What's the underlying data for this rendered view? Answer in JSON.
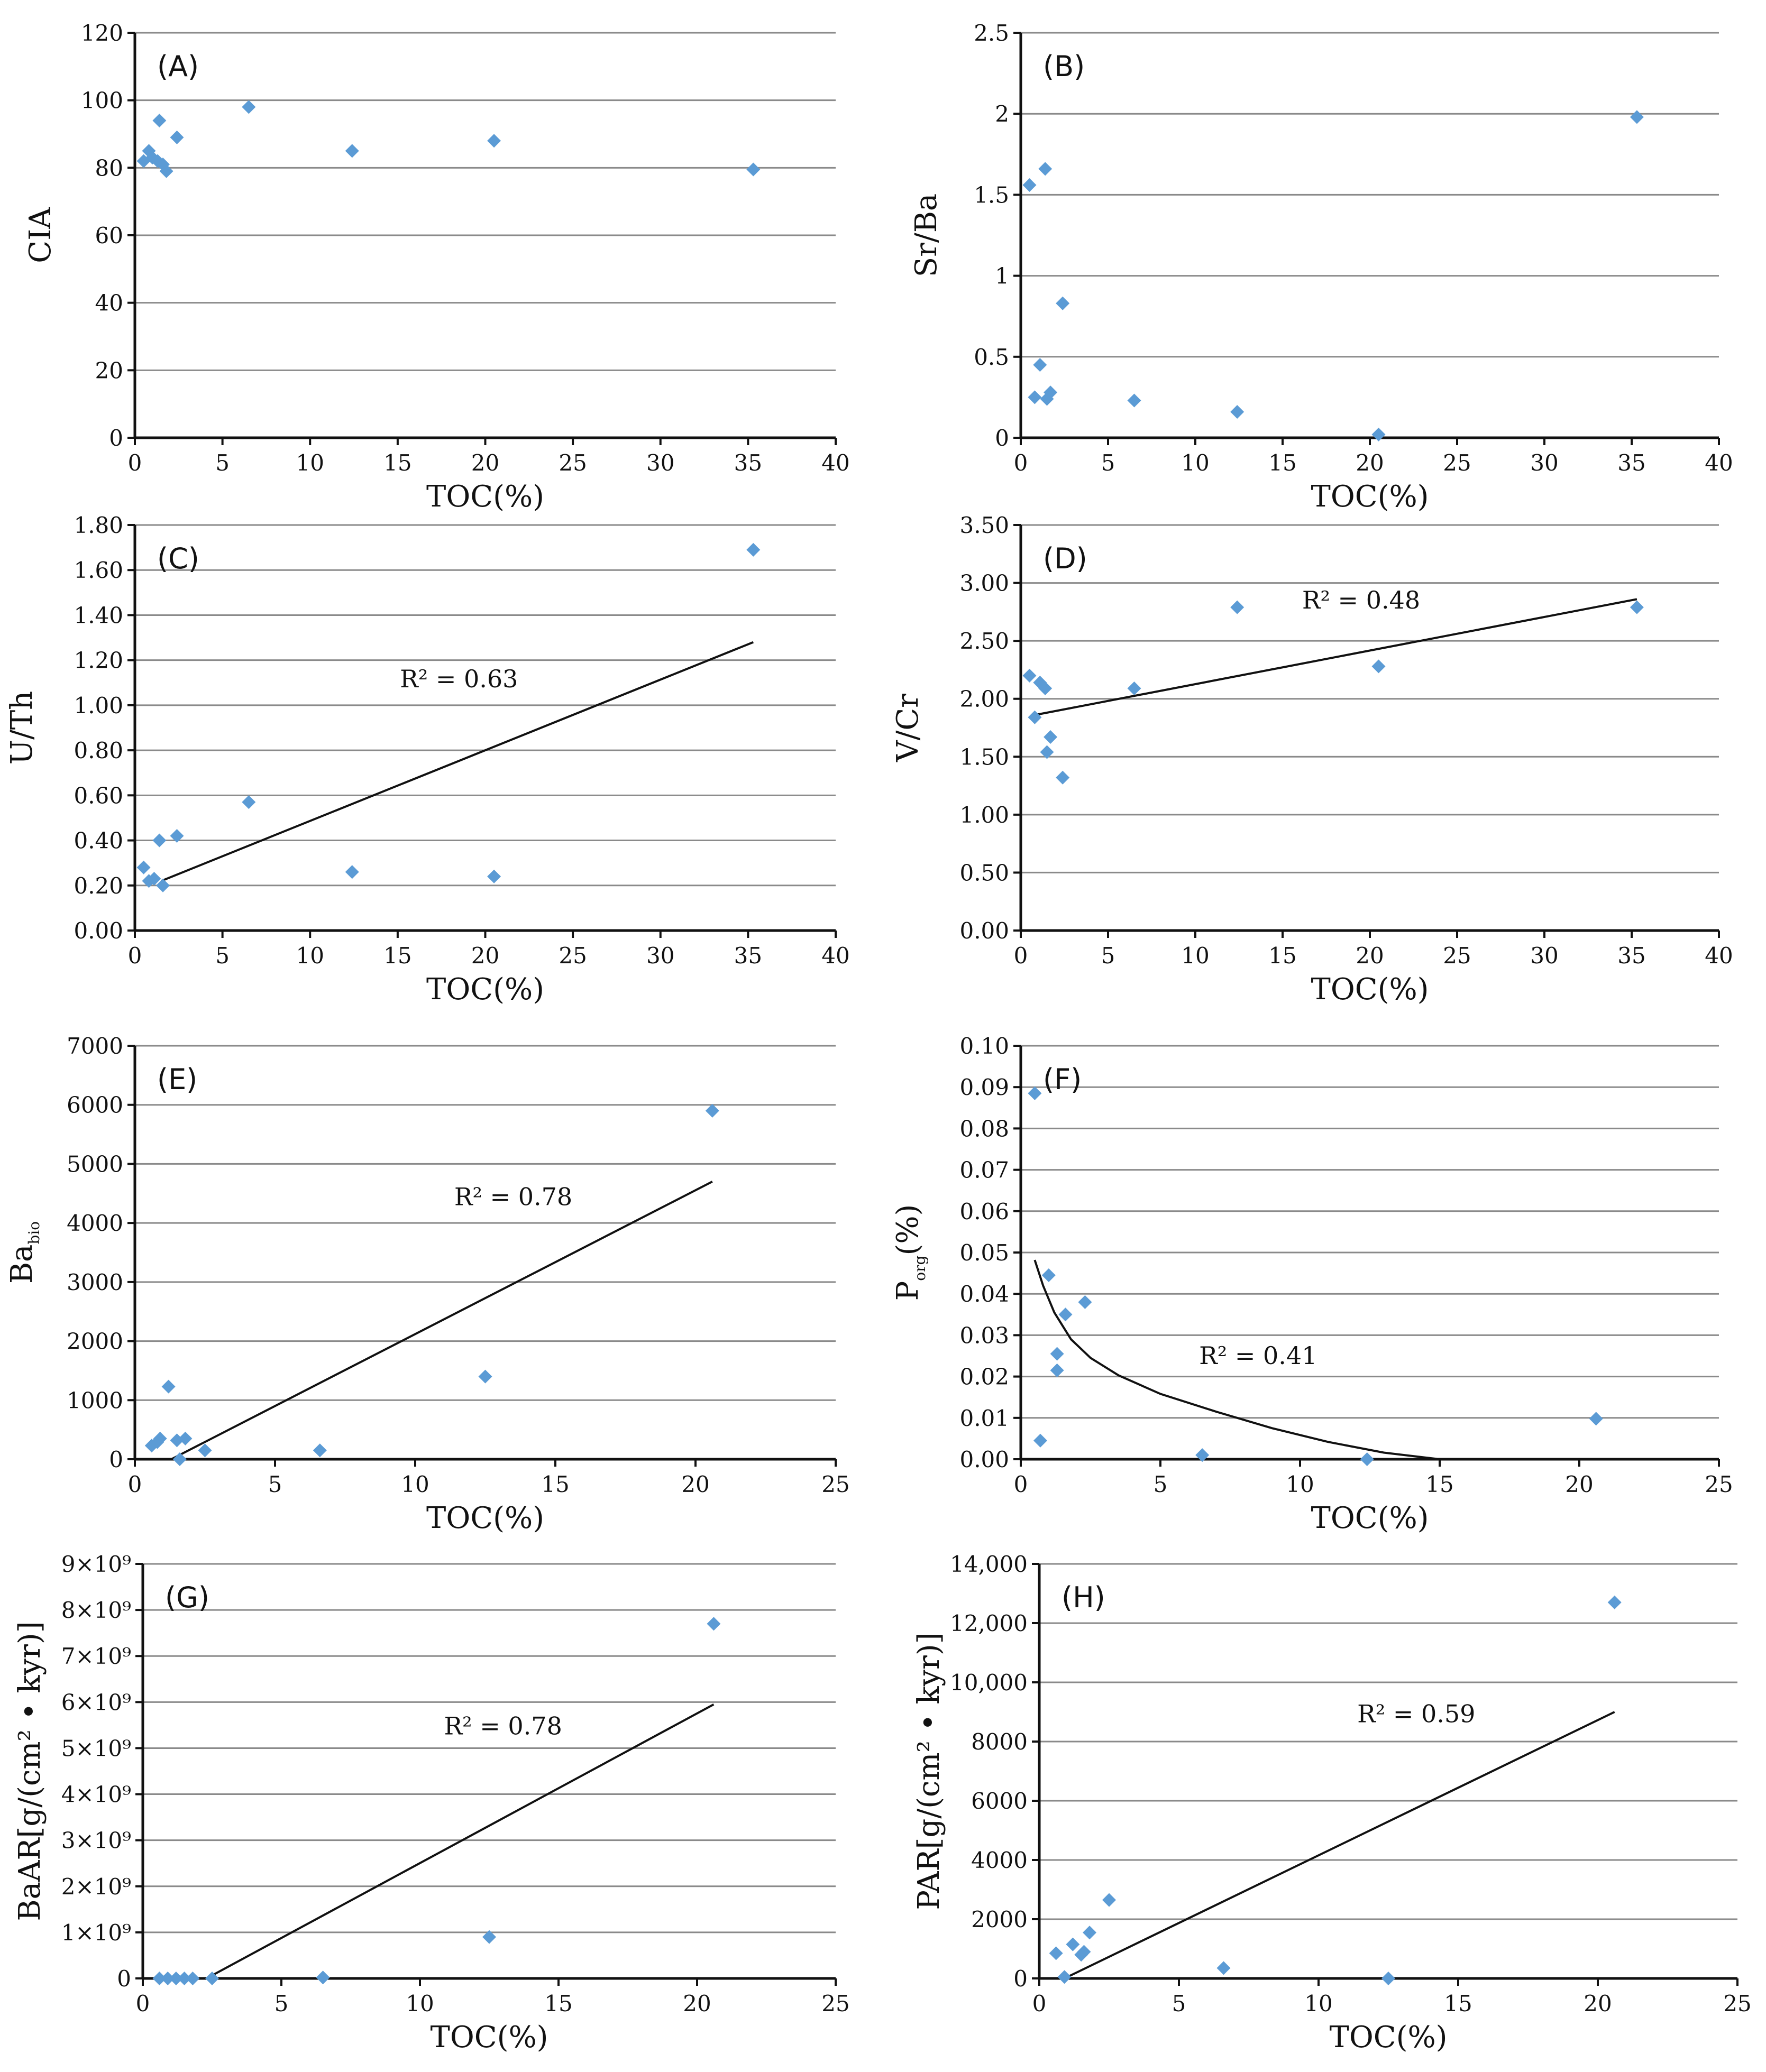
{
  "chart_data": [
    {
      "type": "scatter",
      "panel_label": "(A)",
      "title": "",
      "xlabel": "TOC(%)",
      "ylabel": "CIA",
      "xlim": [
        0,
        40
      ],
      "ylim": [
        0,
        120
      ],
      "xticks": [
        "0",
        "5",
        "10",
        "15",
        "20",
        "25",
        "30",
        "35",
        "40"
      ],
      "yticks": [
        "0",
        "20",
        "40",
        "60",
        "80",
        "100",
        "120"
      ],
      "grid": true,
      "legend": "none",
      "series": [
        {
          "name": "samples",
          "x": [
            0.5,
            0.8,
            1.0,
            1.3,
            1.4,
            1.6,
            1.8,
            2.4,
            6.5,
            12.4,
            20.5,
            35.3
          ],
          "y": [
            82,
            85,
            83,
            82,
            94,
            81,
            79,
            89,
            98,
            85,
            88,
            79.5
          ]
        }
      ],
      "trendline": null
    },
    {
      "type": "scatter",
      "panel_label": "(B)",
      "title": "",
      "xlabel": "TOC(%)",
      "ylabel": "Sr/Ba",
      "xlim": [
        0,
        40
      ],
      "ylim": [
        0,
        2.5
      ],
      "xticks": [
        "0",
        "5",
        "10",
        "15",
        "20",
        "25",
        "30",
        "35",
        "40"
      ],
      "yticks": [
        "0",
        "0.5",
        "1",
        "1.5",
        "2",
        "2.5"
      ],
      "grid": true,
      "legend": "none",
      "series": [
        {
          "name": "samples",
          "x": [
            0.5,
            0.8,
            1.1,
            1.4,
            1.5,
            1.7,
            2.4,
            6.5,
            12.4,
            20.5,
            35.3
          ],
          "y": [
            1.56,
            0.25,
            0.45,
            1.66,
            0.24,
            0.28,
            0.83,
            0.23,
            0.16,
            0.02,
            1.98
          ]
        }
      ],
      "trendline": null
    },
    {
      "type": "scatter",
      "panel_label": "(C)",
      "title": "",
      "xlabel": "TOC(%)",
      "ylabel": "U/Th",
      "xlim": [
        0,
        40
      ],
      "ylim": [
        0,
        1.8
      ],
      "xticks": [
        "0",
        "5",
        "10",
        "15",
        "20",
        "25",
        "30",
        "35",
        "40"
      ],
      "yticks": [
        "0.00",
        "0.20",
        "0.40",
        "0.60",
        "0.80",
        "1.00",
        "1.20",
        "1.40",
        "1.60",
        "1.80"
      ],
      "grid": true,
      "legend": "none",
      "series": [
        {
          "name": "samples",
          "x": [
            0.5,
            0.8,
            1.1,
            1.4,
            1.6,
            2.4,
            6.5,
            12.4,
            20.5,
            35.3
          ],
          "y": [
            0.28,
            0.22,
            0.23,
            0.4,
            0.2,
            0.42,
            0.57,
            0.26,
            0.24,
            1.69
          ]
        }
      ],
      "trendline": {
        "kind": "linear",
        "x": [
          1.5,
          35.3
        ],
        "y": [
          0.22,
          1.28
        ],
        "label": "R² = 0.63",
        "label_at": [
          18.5,
          1.08
        ]
      }
    },
    {
      "type": "scatter",
      "panel_label": "(D)",
      "title": "",
      "xlabel": "TOC(%)",
      "ylabel": "V/Cr",
      "xlim": [
        0,
        40
      ],
      "ylim": [
        0,
        3.5
      ],
      "xticks": [
        "0",
        "5",
        "10",
        "15",
        "20",
        "25",
        "30",
        "35",
        "40"
      ],
      "yticks": [
        "0.00",
        "0.50",
        "1.00",
        "1.50",
        "2.00",
        "2.50",
        "3.00",
        "3.50"
      ],
      "grid": true,
      "legend": "none",
      "series": [
        {
          "name": "samples",
          "x": [
            0.5,
            0.8,
            1.1,
            1.4,
            1.5,
            1.7,
            2.4,
            6.5,
            12.4,
            20.5,
            35.3
          ],
          "y": [
            2.2,
            1.84,
            2.14,
            2.09,
            1.54,
            1.67,
            1.32,
            2.09,
            2.79,
            2.28,
            2.79
          ]
        }
      ],
      "trendline": {
        "kind": "linear",
        "x": [
          0.8,
          35.3
        ],
        "y": [
          1.86,
          2.86
        ],
        "label": "R² = 0.48",
        "label_at": [
          19.5,
          2.78
        ]
      }
    },
    {
      "type": "scatter",
      "panel_label": "(E)",
      "title": "",
      "xlabel": "TOC(%)",
      "ylabel": "Ba",
      "ylabel_sub": "bio",
      "xlim": [
        0,
        25
      ],
      "ylim": [
        0,
        7000
      ],
      "xticks": [
        "0",
        "5",
        "10",
        "15",
        "20",
        "25"
      ],
      "yticks": [
        "0",
        "1000",
        "2000",
        "3000",
        "4000",
        "5000",
        "6000",
        "7000"
      ],
      "grid": true,
      "legend": "none",
      "series": [
        {
          "name": "samples",
          "x": [
            0.6,
            0.8,
            0.9,
            1.2,
            1.5,
            1.6,
            1.8,
            2.5,
            6.6,
            12.5,
            20.6
          ],
          "y": [
            230,
            290,
            350,
            1230,
            320,
            0,
            350,
            150,
            150,
            1400,
            5900
          ]
        }
      ],
      "trendline": {
        "kind": "linear",
        "x": [
          1.3,
          20.6
        ],
        "y": [
          0,
          4700
        ],
        "label": "R² = 0.78",
        "label_at": [
          13.5,
          4300
        ]
      }
    },
    {
      "type": "scatter",
      "panel_label": "(F)",
      "title": "",
      "xlabel": "TOC(%)",
      "ylabel": "P",
      "ylabel_sub": "org",
      "ylabel_suffix": "(%)",
      "xlim": [
        0,
        25
      ],
      "ylim": [
        0,
        0.1
      ],
      "xticks": [
        "0",
        "5",
        "10",
        "15",
        "20",
        "25"
      ],
      "yticks": [
        "0.00",
        "0.01",
        "0.02",
        "0.03",
        "0.04",
        "0.05",
        "0.06",
        "0.07",
        "0.08",
        "0.09",
        "0.10"
      ],
      "grid": true,
      "legend": "none",
      "series": [
        {
          "name": "samples",
          "x": [
            0.5,
            0.7,
            1.0,
            1.3,
            1.3,
            1.6,
            2.3,
            6.5,
            12.4,
            20.6
          ],
          "y": [
            0.0885,
            0.0045,
            0.0445,
            0.0255,
            0.0215,
            0.035,
            0.038,
            0.001,
            0.0,
            0.0098
          ]
        }
      ],
      "trendline": {
        "kind": "power",
        "x": [
          0.5,
          0.8,
          1.2,
          1.8,
          2.5,
          3.5,
          5.0,
          7.0,
          9.0,
          11.0,
          13.0,
          15.0
        ],
        "y": [
          0.0482,
          0.042,
          0.0355,
          0.029,
          0.0245,
          0.0203,
          0.0158,
          0.0115,
          0.0075,
          0.0042,
          0.0016,
          0.0
        ],
        "label": "R² = 0.41",
        "label_at": [
          8.5,
          0.023
        ]
      }
    },
    {
      "type": "scatter",
      "panel_label": "(G)",
      "title": "",
      "xlabel": "TOC(%)",
      "ylabel": "BaAR[g/(cm² • kyr)]",
      "xlim": [
        0,
        25
      ],
      "ylim": [
        0,
        9
      ],
      "y_unit_exponent": 9,
      "xticks": [
        "0",
        "5",
        "10",
        "15",
        "20",
        "25"
      ],
      "yticks": [
        "0",
        "1×10⁹",
        "2×10⁹",
        "3×10⁹",
        "4×10⁹",
        "5×10⁹",
        "6×10⁹",
        "7×10⁹",
        "8×10⁹",
        "9×10⁹"
      ],
      "grid": true,
      "legend": "none",
      "series": [
        {
          "name": "samples",
          "x": [
            0.6,
            0.9,
            1.2,
            1.5,
            1.8,
            2.5,
            6.5,
            12.5,
            20.6
          ],
          "y": [
            0,
            0,
            0,
            0,
            0,
            0,
            0.02,
            0.9,
            7.7
          ]
        }
      ],
      "trendline": {
        "kind": "linear",
        "x": [
          2.3,
          20.6
        ],
        "y": [
          0,
          5.95
        ],
        "label": "R² = 0.78",
        "label_at": [
          13.0,
          5.3
        ]
      }
    },
    {
      "type": "scatter",
      "panel_label": "(H)",
      "title": "",
      "xlabel": "TOC(%)",
      "ylabel": "PAR[g/(cm² • kyr)]",
      "xlim": [
        0,
        25
      ],
      "ylim": [
        0,
        14000
      ],
      "xticks": [
        "0",
        "5",
        "10",
        "15",
        "20",
        "25"
      ],
      "yticks": [
        "0",
        "2000",
        "4000",
        "6000",
        "8000",
        "10,000",
        "12,000",
        "14,000"
      ],
      "grid": true,
      "legend": "none",
      "series": [
        {
          "name": "samples",
          "x": [
            0.6,
            0.9,
            1.2,
            1.5,
            1.6,
            1.8,
            2.5,
            6.6,
            12.5,
            20.6
          ],
          "y": [
            850,
            50,
            1150,
            800,
            900,
            1550,
            2650,
            350,
            0,
            12700
          ]
        }
      ],
      "trendline": {
        "kind": "linear",
        "x": [
          0.9,
          20.6
        ],
        "y": [
          0,
          9000
        ],
        "label": "R² = 0.59",
        "label_at": [
          13.5,
          8650
        ]
      }
    }
  ]
}
